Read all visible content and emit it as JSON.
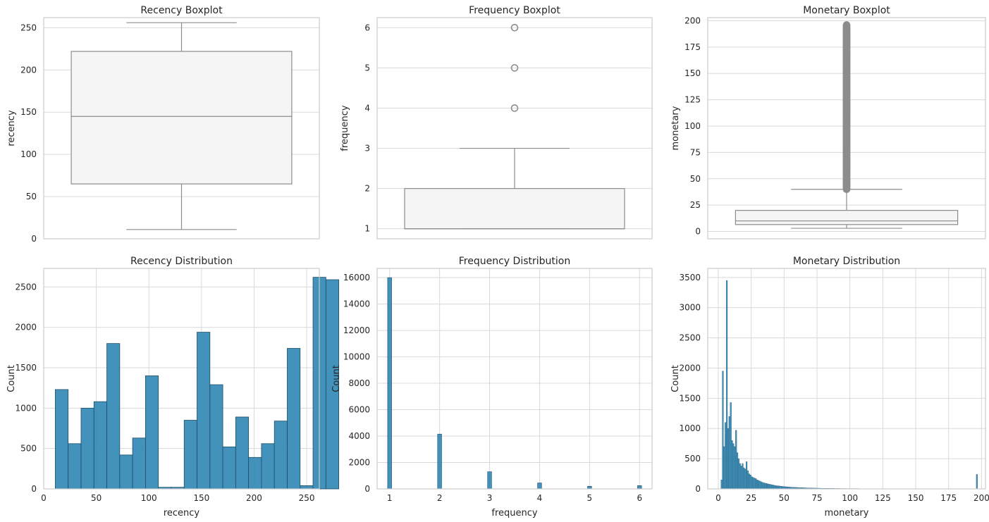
{
  "chart_data": [
    {
      "id": "recency-boxplot",
      "type": "boxplot",
      "title": "Recency Boxplot",
      "xlabel": "",
      "ylabel": "recency",
      "ylim": [
        0,
        262
      ],
      "yticks": [
        0,
        50,
        100,
        150,
        200,
        250
      ],
      "box": {
        "whisker_low": 11,
        "q1": 65,
        "median": 145,
        "q3": 222,
        "whisker_high": 256
      },
      "outliers": [],
      "grid": true
    },
    {
      "id": "frequency-boxplot",
      "type": "boxplot",
      "title": "Frequency Boxplot",
      "xlabel": "",
      "ylabel": "frequency",
      "ylim": [
        0.75,
        6.25
      ],
      "yticks": [
        1,
        2,
        3,
        4,
        5,
        6
      ],
      "box": {
        "whisker_low": 1,
        "q1": 1,
        "median": 1,
        "q3": 2,
        "whisker_high": 3
      },
      "outliers": [
        4,
        5,
        6
      ],
      "grid": true
    },
    {
      "id": "monetary-boxplot",
      "type": "boxplot",
      "title": "Monetary Boxplot",
      "xlabel": "",
      "ylabel": "monetary",
      "ylim": [
        -7,
        203
      ],
      "yticks": [
        0,
        25,
        50,
        75,
        100,
        125,
        150,
        175,
        200
      ],
      "box": {
        "whisker_low": 3,
        "q1": 6.5,
        "median": 10,
        "q3": 20,
        "whisker_high": 40
      },
      "outlier_range": [
        40,
        196
      ],
      "grid": true
    },
    {
      "id": "recency-distribution",
      "type": "histogram",
      "title": "Recency Distribution",
      "xlabel": "recency",
      "ylabel": "Count",
      "xlim": [
        0,
        262
      ],
      "ylim": [
        0,
        2730
      ],
      "xticks": [
        0,
        50,
        100,
        150,
        200,
        250
      ],
      "yticks": [
        0,
        500,
        1000,
        1500,
        2000,
        2500
      ],
      "bin_start": 11,
      "bin_width": 12.25,
      "counts": [
        1230,
        560,
        1000,
        1080,
        1800,
        420,
        630,
        1400,
        20,
        20,
        850,
        1940,
        1290,
        520,
        890,
        390,
        560,
        840,
        1740,
        40,
        2620,
        2590
      ],
      "color": "#2e86b5",
      "grid": true
    },
    {
      "id": "frequency-distribution",
      "type": "histogram",
      "title": "Frequency Distribution",
      "xlabel": "frequency",
      "ylabel": "Count",
      "xlim": [
        0.75,
        6.25
      ],
      "ylim": [
        0,
        16700
      ],
      "xticks": [
        1,
        2,
        3,
        4,
        5,
        6
      ],
      "yticks": [
        0,
        2000,
        4000,
        6000,
        8000,
        10000,
        12000,
        14000,
        16000
      ],
      "bin_width": 0.08,
      "bars": [
        {
          "x": 1,
          "count": 16000
        },
        {
          "x": 2,
          "count": 4150
        },
        {
          "x": 3,
          "count": 1300
        },
        {
          "x": 4,
          "count": 450
        },
        {
          "x": 5,
          "count": 200
        },
        {
          "x": 6,
          "count": 250
        }
      ],
      "color": "#2e86b5",
      "grid": true
    },
    {
      "id": "monetary-distribution",
      "type": "histogram",
      "title": "Monetary Distribution",
      "xlabel": "monetary",
      "ylabel": "Count",
      "xlim": [
        -8,
        203
      ],
      "ylim": [
        0,
        3650
      ],
      "xticks": [
        0,
        25,
        50,
        75,
        100,
        125,
        150,
        175,
        200
      ],
      "yticks": [
        0,
        500,
        1000,
        1500,
        2000,
        2500,
        3000,
        3500
      ],
      "bin_start": 2,
      "bin_width": 1,
      "counts": [
        150,
        1950,
        700,
        1100,
        3450,
        1000,
        1200,
        1430,
        800,
        750,
        700,
        970,
        600,
        500,
        420,
        380,
        420,
        350,
        330,
        450,
        300,
        250,
        230,
        200,
        190,
        180,
        170,
        150,
        140,
        130,
        120,
        110,
        100,
        95,
        90,
        85,
        80,
        75,
        70,
        65,
        60,
        55,
        52,
        50,
        48,
        45,
        42,
        40,
        38,
        36,
        34,
        32,
        30,
        28,
        27,
        26,
        25,
        24,
        23,
        22,
        21,
        20,
        19,
        18,
        17,
        16,
        15,
        15,
        14,
        14,
        13,
        13,
        12,
        12,
        11,
        11,
        10,
        10,
        10,
        9,
        9,
        9,
        8,
        8,
        8,
        8,
        7,
        7,
        7,
        7,
        6,
        6,
        6,
        6,
        6,
        5,
        5,
        5,
        5,
        5,
        5,
        5,
        5,
        5,
        5,
        4,
        4,
        4,
        4,
        4,
        4,
        4,
        4,
        4,
        4,
        3,
        3,
        3,
        3,
        3,
        3,
        3,
        3,
        3,
        3,
        3,
        3,
        3,
        3,
        3,
        3,
        3,
        3,
        3,
        3,
        3,
        3,
        3,
        3,
        3,
        2,
        2,
        2,
        2,
        2,
        2,
        2,
        2,
        2,
        2,
        2,
        2,
        2,
        2,
        2,
        2,
        2,
        2,
        2,
        2,
        2,
        2,
        2,
        2,
        2,
        2,
        2,
        2,
        2,
        2,
        2,
        2,
        2,
        2,
        2,
        2,
        2,
        2,
        2,
        2,
        2,
        2,
        2,
        2,
        2,
        2,
        2,
        2,
        2,
        2,
        2,
        2,
        2,
        2,
        240
      ],
      "color": "#2e86b5",
      "grid": true
    }
  ]
}
